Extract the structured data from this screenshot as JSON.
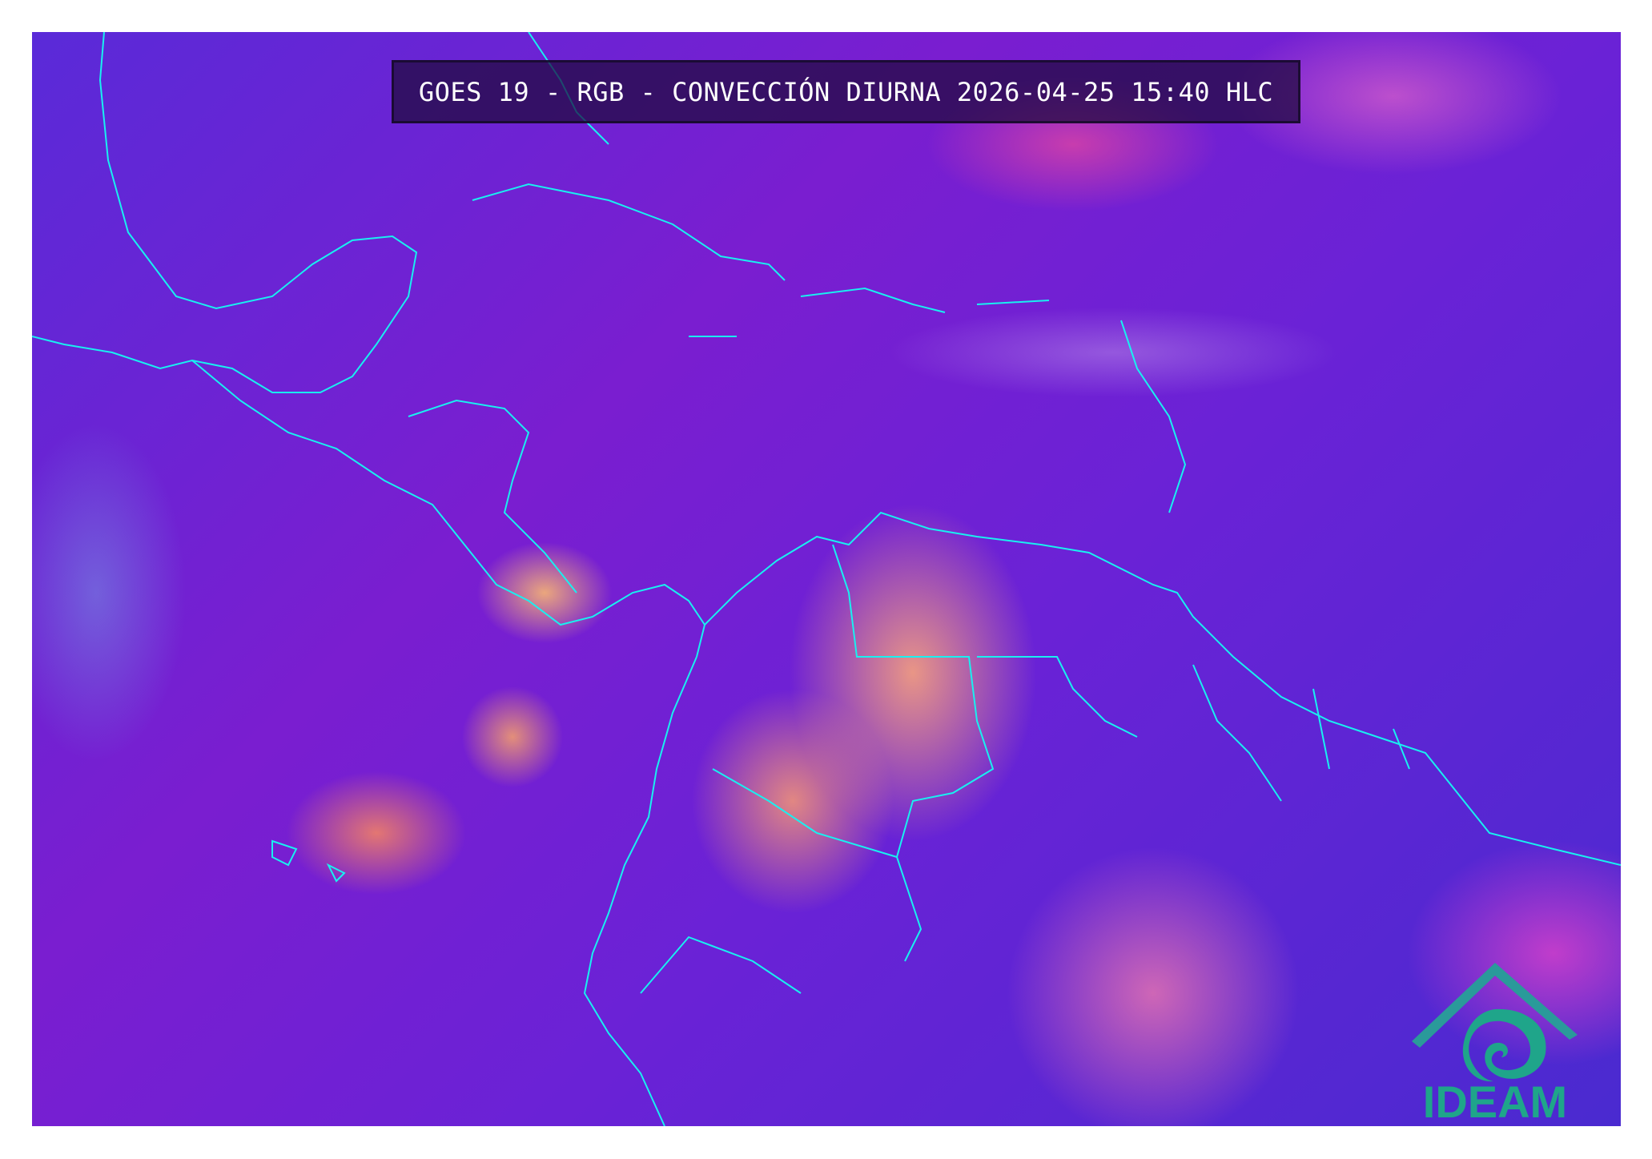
{
  "title": "GOES 19 - RGB - CONVECCIÓN DIURNA 2026-04-25 15:40 HLC",
  "logo": {
    "text": "IDEAM",
    "color": "#1fa58a"
  },
  "colors": {
    "coastline": "#19f0f0",
    "background": "#6a22d6",
    "convection": "#ff9a70"
  }
}
